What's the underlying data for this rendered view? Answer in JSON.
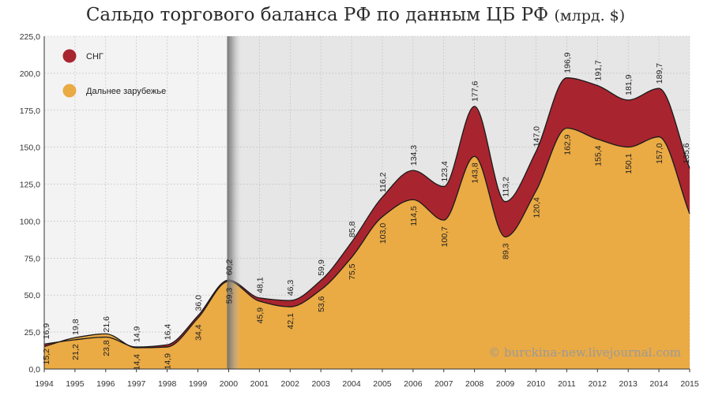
{
  "title": "Сальдо торгового баланса РФ по данным ЦБ РФ",
  "title_unit": "(млрд. $)",
  "watermark": "© burckina-new.livejournal.com",
  "colors": {
    "cis": "#a8252f",
    "far_abroad": "#eaaa44",
    "bg_left": "#f3f3f3",
    "bg_right": "#e6e6e6",
    "grid": "#bdbdbd"
  },
  "chart_data": {
    "type": "area",
    "title": "Сальдо торгового баланса РФ по данным ЦБ РФ (млрд. $)",
    "x": [
      1994,
      1995,
      1996,
      1997,
      1998,
      1999,
      2000,
      2001,
      2002,
      2003,
      2004,
      2005,
      2006,
      2007,
      2008,
      2009,
      2010,
      2011,
      2012,
      2013,
      2014,
      2015
    ],
    "x_tick_labels": [
      "1994",
      "1995",
      "1996",
      "1997",
      "1998",
      "1999",
      "2000",
      "2001",
      "2002",
      "2003",
      "2004",
      "2005",
      "2006",
      "2007",
      "2008",
      "2009",
      "2010",
      "2011",
      "2012",
      "2013",
      "2014",
      "2015"
    ],
    "y_ticks": [
      "0,0",
      "25,0",
      "50,0",
      "75,0",
      "100,0",
      "125,0",
      "150,0",
      "175,0",
      "200,0",
      "225,0"
    ],
    "y_tick_values": [
      0,
      25,
      50,
      75,
      100,
      125,
      150,
      175,
      200,
      225
    ],
    "ylim": [
      0,
      225
    ],
    "xlim": [
      1994,
      2015
    ],
    "stacked": true,
    "legend_position": "top-left",
    "series": [
      {
        "name": "Дальнее зарубежье",
        "values": [
          15.2,
          21.2,
          23.8,
          14.4,
          14.9,
          34.4,
          59.3,
          45.9,
          42.1,
          53.6,
          75.5,
          103.0,
          114.5,
          100.7,
          143.8,
          89.3,
          120.4,
          162.9,
          155.4,
          150.1,
          157.0,
          105.0
        ],
        "labels": [
          "15,2",
          "21,2",
          "23,8",
          "14,4",
          "14,9",
          "34,4",
          "59,3",
          "45,9",
          "42,1",
          "53,6",
          "75,5",
          "103,0",
          "114,5",
          "100,7",
          "143,8",
          "89,3",
          "120,4",
          "162,9",
          "155,4",
          "150,1",
          "157,0",
          ""
        ]
      },
      {
        "name": "СНГ",
        "total_values": [
          16.9,
          19.8,
          21.6,
          14.9,
          16.4,
          36.0,
          60.2,
          48.1,
          46.3,
          59.9,
          85.8,
          116.2,
          134.3,
          123.4,
          177.6,
          113.2,
          147.0,
          196.9,
          191.7,
          181.9,
          189.7,
          135.6
        ],
        "total_labels": [
          "16,9",
          "19,8",
          "21,6",
          "14,9",
          "16,4",
          "36,0",
          "60,2",
          "48,1",
          "46,3",
          "59,9",
          "85,8",
          "116,2",
          "134,3",
          "123,4",
          "177,6",
          "113,2",
          "147,0",
          "196,9",
          "191,7",
          "181,9",
          "189,7",
          "135,6"
        ]
      }
    ],
    "legend": [
      "СНГ",
      "Дальнее зарубежье"
    ]
  }
}
